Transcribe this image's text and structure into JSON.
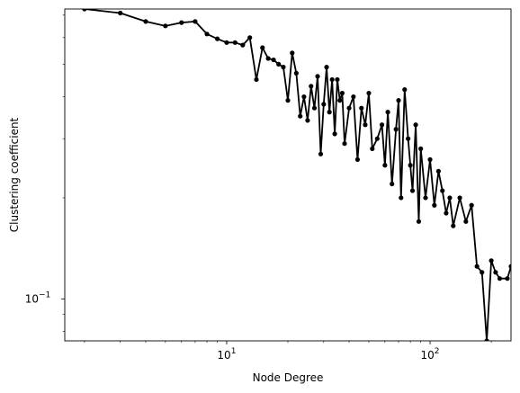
{
  "chart_data": {
    "type": "line",
    "xscale": "log",
    "yscale": "log",
    "xlabel": "Node Degree",
    "ylabel": "Clustering coefficient",
    "xlim": [
      1.6,
      250
    ],
    "ylim": [
      0.075,
      0.73
    ],
    "x_ticks": [
      {
        "base": "10",
        "exp": "1",
        "value": 10
      },
      {
        "base": "10",
        "exp": "2",
        "value": 100
      }
    ],
    "y_ticks": [
      {
        "base": "10",
        "exp": "−1",
        "value": 0.1
      }
    ],
    "grid": false,
    "marker": "circle",
    "line_color": "#000000",
    "series": [
      {
        "x": [
          2,
          3,
          4,
          5,
          6,
          7,
          8,
          9,
          10,
          11,
          12,
          13,
          14,
          15,
          16,
          17,
          18,
          19,
          20,
          21,
          22,
          23,
          24,
          25,
          26,
          27,
          28,
          29,
          30,
          31,
          32,
          33,
          34,
          35,
          36,
          37,
          38,
          40,
          42,
          44,
          46,
          48,
          50,
          52,
          55,
          58,
          60,
          62,
          65,
          68,
          70,
          72,
          75,
          78,
          80,
          82,
          85,
          88,
          90,
          95,
          100,
          105,
          110,
          115,
          120,
          125,
          130,
          140,
          150,
          160,
          170,
          180,
          190,
          200,
          210,
          220,
          240,
          250
        ],
        "y": [
          0.73,
          0.71,
          0.67,
          0.65,
          0.665,
          0.67,
          0.615,
          0.595,
          0.58,
          0.58,
          0.57,
          0.6,
          0.45,
          0.56,
          0.52,
          0.515,
          0.5,
          0.49,
          0.39,
          0.54,
          0.47,
          0.35,
          0.4,
          0.34,
          0.43,
          0.37,
          0.46,
          0.27,
          0.38,
          0.49,
          0.36,
          0.45,
          0.31,
          0.45,
          0.39,
          0.41,
          0.29,
          0.37,
          0.4,
          0.26,
          0.37,
          0.33,
          0.41,
          0.28,
          0.3,
          0.33,
          0.25,
          0.36,
          0.22,
          0.32,
          0.39,
          0.2,
          0.42,
          0.3,
          0.25,
          0.21,
          0.33,
          0.17,
          0.28,
          0.2,
          0.26,
          0.19,
          0.24,
          0.21,
          0.18,
          0.2,
          0.165,
          0.2,
          0.17,
          0.19,
          0.125,
          0.12,
          0.075,
          0.13,
          0.12,
          0.115,
          0.115,
          0.125
        ]
      }
    ]
  }
}
